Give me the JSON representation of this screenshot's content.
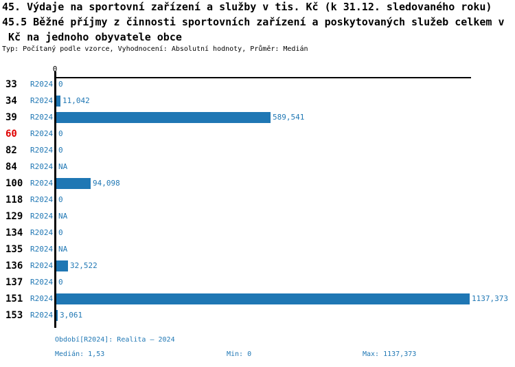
{
  "header": {
    "title_line1": "45. Výdaje na sportovní zařízení a služby v tis. Kč (k 31.12. sledovaného roku)",
    "title_line2": "45.5 Běžné příjmy z činnosti sportovních zařízení a poskytovaných služeb celkem v",
    "title_line3": " Kč na jednoho obyvatele obce",
    "subtitle": "Typ: Počítaný podle vzorce, Vyhodnocení: Absolutní hodnoty, Průměr: Medián"
  },
  "chart_data": {
    "type": "bar",
    "orientation": "horizontal",
    "title": "45.5 Běžné příjmy z činnosti sportovních zařízení a poskytovaných služeb celkem v Kč na jednoho obyvatele obce",
    "axis_tick_label": "0",
    "period_label": "R2024",
    "categories": [
      "33",
      "34",
      "39",
      "60",
      "82",
      "84",
      "100",
      "118",
      "129",
      "134",
      "135",
      "136",
      "137",
      "151",
      "153"
    ],
    "values": [
      0,
      11.042,
      589.541,
      0,
      0,
      null,
      94.098,
      0,
      null,
      0,
      null,
      32.522,
      0,
      1137.373,
      3.061
    ],
    "value_labels": [
      "0",
      "11,042",
      "589,541",
      "0",
      "0",
      "NA",
      "94,098",
      "0",
      "NA",
      "0",
      "NA",
      "32,522",
      "0",
      "1137,373",
      "3,061"
    ],
    "highlighted_category": "60",
    "xlim": [
      0,
      1146
    ],
    "grid": false,
    "legend": "none",
    "bar_color": "#1f77b4",
    "highlight_color": "#e00000",
    "max_value": 1137.373
  },
  "footer": {
    "period_info": "Období[R2024]: Realita – 2024",
    "median": "Medián: 1,53",
    "min": "Min: 0",
    "max": "Max: 1137,373"
  }
}
